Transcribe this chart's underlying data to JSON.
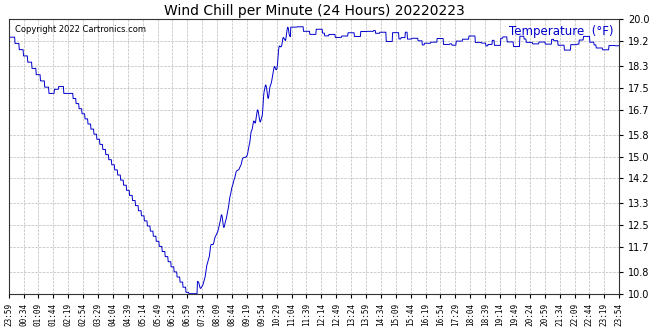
{
  "title": "Wind Chill per Minute (24 Hours) 20220223",
  "ylabel": "Temperature  (°F)",
  "copyright": "Copyright 2022 Cartronics.com",
  "line_color": "#0000cc",
  "bg_color": "#ffffff",
  "plot_bg_color": "#ffffff",
  "grid_color": "#aaaaaa",
  "ylim": [
    10.0,
    20.0
  ],
  "yticks": [
    10.0,
    10.8,
    11.7,
    12.5,
    13.3,
    14.2,
    15.0,
    15.8,
    16.7,
    17.5,
    18.3,
    19.2,
    20.0
  ],
  "xtick_labels": [
    "23:59",
    "00:34",
    "01:09",
    "01:44",
    "02:19",
    "02:54",
    "03:29",
    "04:04",
    "04:39",
    "05:14",
    "05:49",
    "06:24",
    "06:59",
    "07:34",
    "08:09",
    "08:44",
    "09:19",
    "09:54",
    "10:29",
    "11:04",
    "11:39",
    "12:14",
    "12:49",
    "13:24",
    "13:59",
    "14:34",
    "15:09",
    "15:44",
    "16:19",
    "16:54",
    "17:29",
    "18:04",
    "18:39",
    "19:14",
    "19:49",
    "20:24",
    "20:59",
    "21:34",
    "22:09",
    "22:44",
    "23:19",
    "23:54"
  ]
}
